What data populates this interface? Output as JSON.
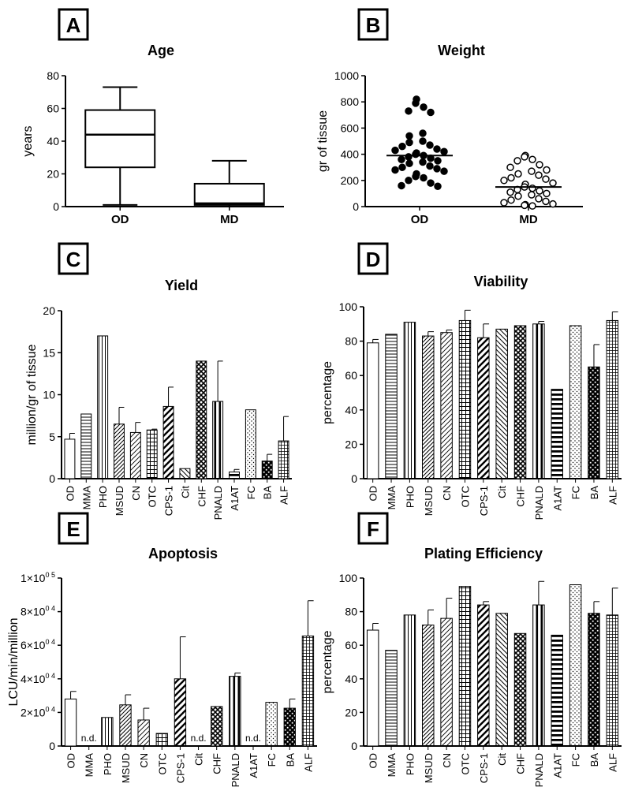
{
  "chart_data": [
    {
      "panel": "A",
      "type": "boxplot",
      "title": "Age",
      "ylabel": "years",
      "ylim": [
        0,
        80
      ],
      "yticks": [
        0,
        20,
        40,
        60,
        80
      ],
      "categories": [
        "OD",
        "MD"
      ],
      "boxes": [
        {
          "name": "OD",
          "min": 1,
          "q1": 24,
          "median": 44,
          "q3": 59,
          "max": 73
        },
        {
          "name": "MD",
          "min": 0,
          "q1": 1,
          "median": 2,
          "q3": 14,
          "max": 28
        }
      ]
    },
    {
      "panel": "B",
      "type": "scatter",
      "title": "Weight",
      "ylabel": "gr of tissue",
      "ylim": [
        0,
        1000
      ],
      "yticks": [
        0,
        200,
        400,
        600,
        800,
        1000
      ],
      "categories": [
        "OD",
        "MD"
      ],
      "series": [
        {
          "name": "OD",
          "filled": true,
          "mean": 390,
          "values": [
            820,
            790,
            760,
            730,
            720,
            560,
            540,
            500,
            490,
            470,
            460,
            440,
            430,
            420,
            410,
            400,
            390,
            380,
            370,
            360,
            350,
            340,
            330,
            310,
            300,
            290,
            280,
            270,
            250,
            230,
            220,
            200,
            180,
            160,
            155
          ]
        },
        {
          "name": "MD",
          "filled": false,
          "mean": 150,
          "values": [
            390,
            380,
            360,
            350,
            320,
            300,
            280,
            270,
            250,
            240,
            220,
            210,
            200,
            180,
            170,
            150,
            140,
            130,
            120,
            110,
            100,
            90,
            80,
            60,
            50,
            40,
            30,
            20,
            15,
            10,
            5
          ]
        }
      ]
    },
    {
      "panel": "C",
      "type": "bar",
      "title": "Yield",
      "ylabel": "million/gr of tissue",
      "ylim": [
        0,
        20
      ],
      "yticks": [
        0,
        5,
        10,
        15,
        20
      ],
      "categories": [
        "OD",
        "MMA",
        "PHO",
        "MSUD",
        "CN",
        "OTC",
        "CPS-1",
        "Cit",
        "CHF",
        "PNALD",
        "A1AT",
        "FC",
        "BA",
        "ALF"
      ],
      "values": [
        4.7,
        7.7,
        17.0,
        6.5,
        5.5,
        5.8,
        8.6,
        1.2,
        14.0,
        9.2,
        0.8,
        8.2,
        2.1,
        4.5
      ],
      "errors": [
        0.7,
        null,
        null,
        2.0,
        1.2,
        0.1,
        2.3,
        null,
        null,
        4.8,
        0.3,
        null,
        0.8,
        2.9
      ]
    },
    {
      "panel": "D",
      "type": "bar",
      "title": "Viability",
      "ylabel": "percentage",
      "ylim": [
        0,
        100
      ],
      "yticks": [
        0,
        20,
        40,
        60,
        80,
        100
      ],
      "categories": [
        "OD",
        "MMA",
        "PHO",
        "MSUD",
        "CN",
        "OTC",
        "CPS-1",
        "Cit",
        "CHF",
        "PNALD",
        "A1AT",
        "FC",
        "BA",
        "ALF"
      ],
      "values": [
        79,
        84,
        91,
        83,
        85,
        92,
        82,
        87,
        89,
        90,
        52,
        89,
        65,
        92
      ],
      "errors": [
        2,
        null,
        null,
        2.5,
        1.5,
        6,
        8,
        null,
        null,
        1.5,
        null,
        null,
        13,
        5
      ]
    },
    {
      "panel": "E",
      "type": "bar",
      "title": "Apoptosis",
      "ylabel": "LCU/min/million",
      "ylim": [
        0,
        100000
      ],
      "ytick_labels": [
        {
          "base": "0",
          "exp": ""
        },
        {
          "base": "2×10",
          "exp": "0 4"
        },
        {
          "base": "4×10",
          "exp": "0 4"
        },
        {
          "base": "6×10",
          "exp": "0 4"
        },
        {
          "base": "8×10",
          "exp": "0 4"
        },
        {
          "base": "1×10",
          "exp": "0 5"
        }
      ],
      "categories": [
        "OD",
        "MMA",
        "PHO",
        "MSUD",
        "CN",
        "OTC",
        "CPS-1",
        "Cit",
        "CHF",
        "PNALD",
        "A1AT",
        "FC",
        "BA",
        "ALF"
      ],
      "values": [
        28000,
        null,
        17000,
        24500,
        15500,
        7500,
        40000,
        null,
        23500,
        41500,
        null,
        26000,
        22500,
        65500
      ],
      "errors": [
        4500,
        null,
        null,
        6000,
        7000,
        null,
        25000,
        null,
        null,
        2000,
        null,
        null,
        5500,
        21000
      ],
      "missing_label": "n.d."
    },
    {
      "panel": "F",
      "type": "bar",
      "title": "Plating Efficiency",
      "ylabel": "percentage",
      "ylim": [
        0,
        100
      ],
      "yticks": [
        0,
        20,
        40,
        60,
        80,
        100
      ],
      "categories": [
        "OD",
        "MMA",
        "PHO",
        "MSUD",
        "CN",
        "OTC",
        "CPS-1",
        "Cit",
        "CHF",
        "PNALD",
        "A1AT",
        "FC",
        "BA",
        "ALF"
      ],
      "values": [
        69,
        57,
        78,
        72,
        76,
        95,
        84,
        79,
        67,
        84,
        66,
        96,
        79,
        78
      ],
      "errors": [
        4,
        null,
        null,
        9,
        12,
        null,
        2,
        null,
        null,
        14,
        null,
        null,
        7,
        16
      ]
    }
  ]
}
